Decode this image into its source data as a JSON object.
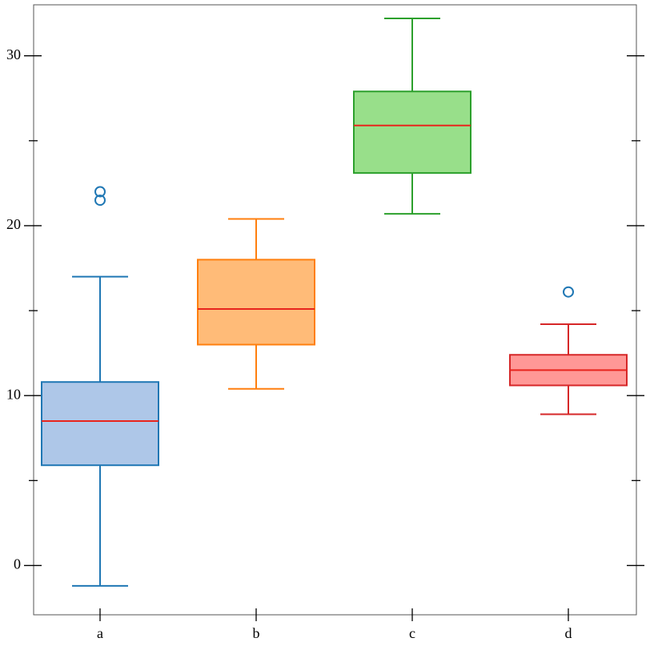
{
  "chart_data": {
    "type": "box",
    "categories": [
      "a",
      "b",
      "c",
      "d"
    ],
    "boxes": [
      {
        "low": -1.2,
        "q1": 5.9,
        "median": 8.5,
        "q3": 10.8,
        "high": 17.0,
        "outliers": [
          22.0,
          21.5
        ],
        "color": "#1f77b4",
        "fill": "#aec7e8"
      },
      {
        "low": 10.4,
        "q1": 13.0,
        "median": 15.1,
        "q3": 18.0,
        "high": 20.4,
        "outliers": [],
        "color": "#ff7f0e",
        "fill": "#ffbb78"
      },
      {
        "low": 20.7,
        "q1": 23.1,
        "median": 25.9,
        "q3": 27.9,
        "high": 32.2,
        "outliers": [],
        "color": "#2ca02c",
        "fill": "#98df8a"
      },
      {
        "low": 8.9,
        "q1": 10.6,
        "median": 11.5,
        "q3": 12.4,
        "high": 14.2,
        "outliers": [
          16.1
        ],
        "color": "#d62728",
        "fill": "#ff9896"
      }
    ],
    "median_color": "#e8251d",
    "outlier_color": "#1f77b4",
    "ylim": [
      -2.9,
      33.0
    ],
    "yticks": [
      0,
      10,
      20,
      30
    ],
    "minor_yticks": [
      5,
      15,
      25
    ]
  }
}
